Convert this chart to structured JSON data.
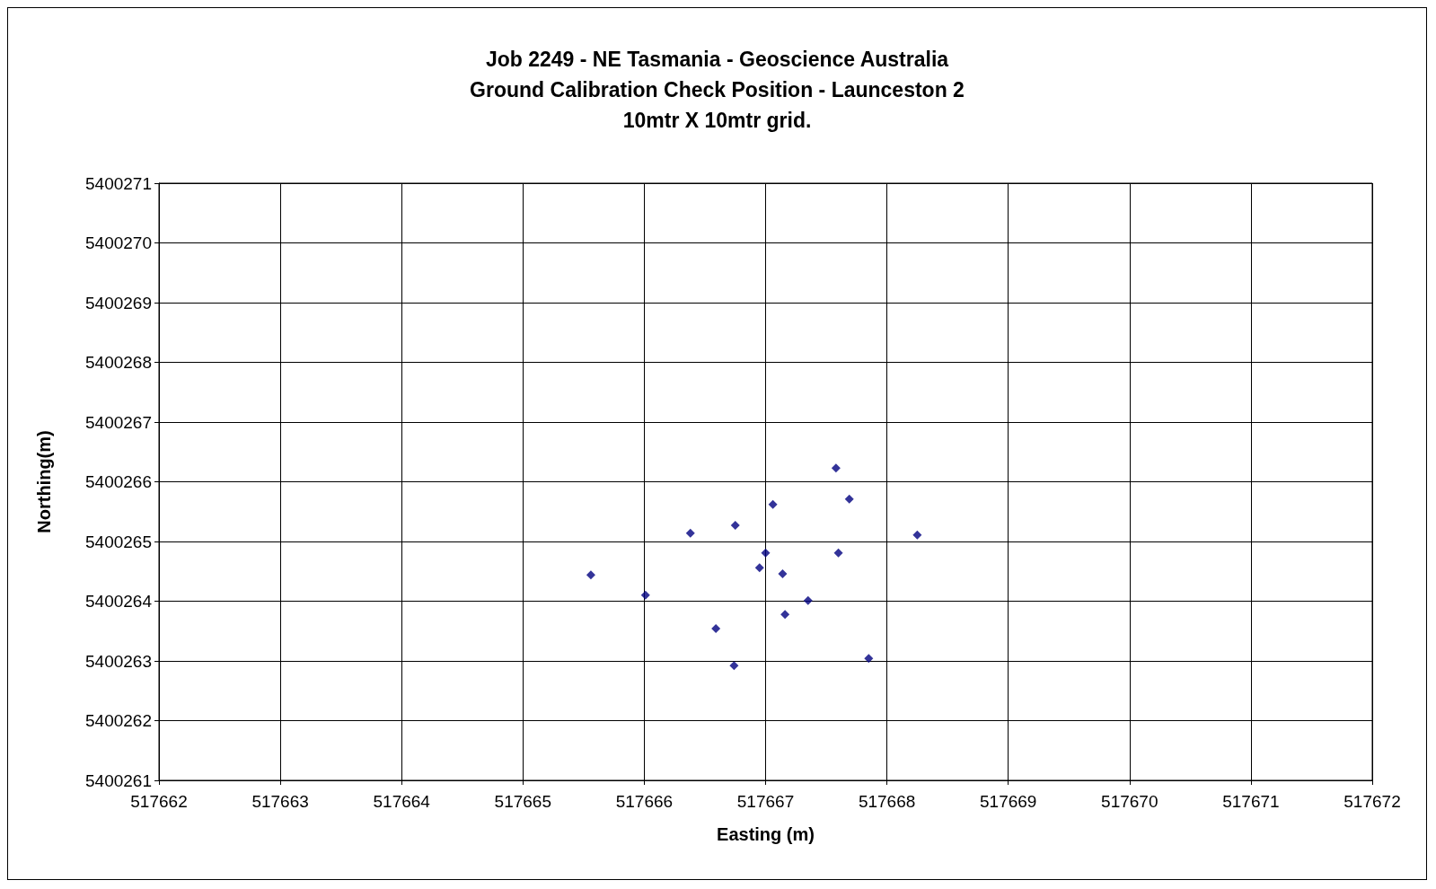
{
  "chart_data": {
    "type": "scatter",
    "title": "Job 2249 - NE Tasmania - Geoscience Australia\nGround Calibration Check Position - Launceston 2\n10mtr X 10mtr grid.",
    "xlabel": "Easting (m)",
    "ylabel": "Northing(m)",
    "x": [
      517665.56,
      517666.01,
      517666.38,
      517666.75,
      517666.59,
      517666.74,
      517667.06,
      517667.0,
      517666.95,
      517667.14,
      517667.35,
      517667.16,
      517667.58,
      517667.69,
      517667.6,
      517667.85,
      517668.25
    ],
    "series": [
      {
        "color": "#000080",
        "values": [
          5400264.44,
          5400264.1,
          5400265.14,
          5400265.27,
          5400263.54,
          5400262.92,
          5400265.62,
          5400264.81,
          5400264.56,
          5400264.46,
          5400264.01,
          5400263.78,
          5400266.23,
          5400265.71,
          5400264.81,
          5400263.04,
          5400265.11
        ]
      }
    ],
    "xlim": [
      517662,
      517672
    ],
    "xticks": [
      517662,
      517663,
      517664,
      517665,
      517666,
      517667,
      517668,
      517669,
      517670,
      517671,
      517672
    ],
    "ylim": [
      5400261,
      5400271
    ],
    "yticks": [
      5400261,
      5400262,
      5400263,
      5400264,
      5400265,
      5400266,
      5400267,
      5400268,
      5400269,
      5400270,
      5400271
    ],
    "grid": true,
    "marker": "diamond"
  }
}
